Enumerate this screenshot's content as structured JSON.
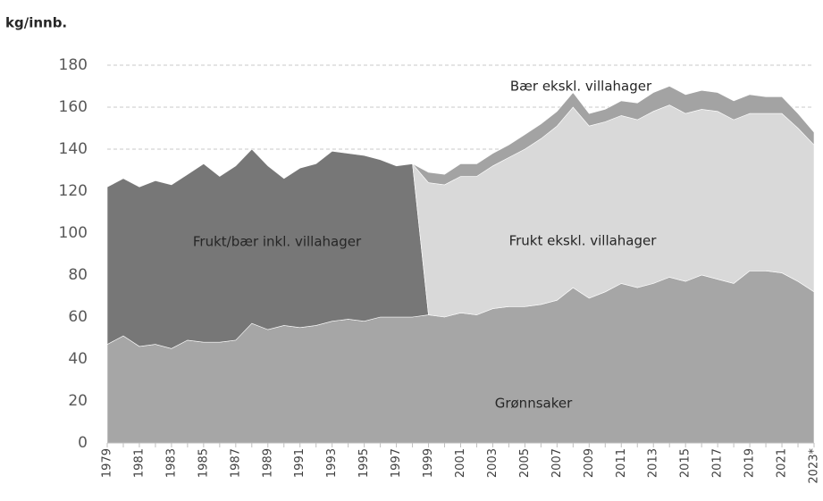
{
  "chart_data": {
    "type": "stacked_area",
    "y_label": "kg/innb.",
    "categories": [
      "1979",
      null,
      "1981",
      null,
      "1983",
      null,
      "1985",
      null,
      "1987",
      null,
      "1989",
      null,
      "1991",
      null,
      "1993",
      null,
      "1995",
      null,
      "1997",
      null,
      "1999",
      null,
      "2001",
      null,
      "2003",
      null,
      "2005",
      null,
      "2007",
      null,
      "2009",
      null,
      "2011",
      null,
      "2013",
      null,
      "2015",
      null,
      "2017",
      null,
      "2019",
      null,
      "2021",
      null,
      "2023*"
    ],
    "series": [
      {
        "name": "Grønnsaker",
        "color": "#a6a6a6",
        "values": [
          47,
          51,
          46,
          47,
          45,
          49,
          48,
          48,
          49,
          57,
          54,
          56,
          55,
          56,
          58,
          59,
          58,
          60,
          60,
          60,
          61,
          60,
          62,
          61,
          64,
          65,
          65,
          66,
          68,
          74,
          69,
          72,
          76,
          74,
          76,
          79,
          77,
          80,
          78,
          76,
          82,
          82,
          81,
          77,
          72
        ]
      },
      {
        "name": "Frukt/bær inkl. villahager",
        "color": "#777777",
        "values": [
          75,
          75,
          76,
          78,
          78,
          79,
          85,
          79,
          83,
          83,
          78,
          70,
          76,
          77,
          81,
          79,
          79,
          75,
          72,
          73,
          0,
          null,
          null,
          null,
          null,
          null,
          null,
          null,
          null,
          null,
          null,
          null,
          null,
          null,
          null,
          null,
          null,
          null,
          null,
          null,
          null,
          null,
          null,
          null,
          null
        ]
      },
      {
        "name": "Frukt ekskl. villahager",
        "color": "#d9d9d9",
        "values": [
          null,
          null,
          null,
          null,
          null,
          null,
          null,
          null,
          null,
          null,
          null,
          null,
          null,
          null,
          null,
          null,
          null,
          null,
          null,
          0,
          63,
          63,
          65,
          66,
          68,
          71,
          75,
          79,
          83,
          86,
          82,
          81,
          80,
          80,
          82,
          82,
          80,
          79,
          80,
          78,
          75,
          75,
          76,
          73,
          70
        ]
      },
      {
        "name": "Bær ekskl. villahager",
        "color": "#a3a3a3",
        "values": [
          null,
          null,
          null,
          null,
          null,
          null,
          null,
          null,
          null,
          null,
          null,
          null,
          null,
          null,
          null,
          null,
          null,
          null,
          null,
          0,
          5,
          5,
          6,
          6,
          6,
          6,
          7,
          7,
          7,
          7,
          6,
          6,
          7,
          8,
          9,
          9,
          9,
          9,
          9,
          9,
          9,
          8,
          8,
          7,
          6
        ]
      }
    ],
    "ylim": [
      0,
      180
    ],
    "yticks": [
      0,
      20,
      40,
      60,
      80,
      100,
      120,
      140,
      160,
      180
    ],
    "grid": true
  }
}
